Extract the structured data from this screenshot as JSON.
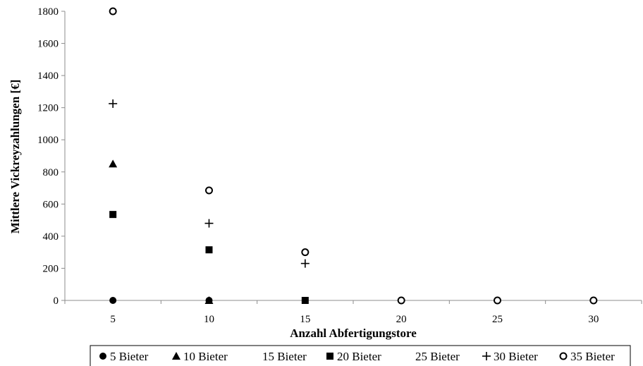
{
  "chart_data": {
    "type": "scatter",
    "xlabel": "Anzahl Abfertigungstore",
    "ylabel": "Mittlere Vickreyzahlungen [€]",
    "x_categories": [
      "5",
      "10",
      "15",
      "20",
      "25",
      "30"
    ],
    "ylim": [
      0,
      1800
    ],
    "yticks": [
      "0",
      "200",
      "400",
      "600",
      "800",
      "1000",
      "1200",
      "1400",
      "1600",
      "1800"
    ],
    "grid": false,
    "legend_position": "bottom",
    "series": [
      {
        "name": "5 Bieter",
        "marker": "circle-filled",
        "values": [
          0,
          0,
          null,
          null,
          null,
          null
        ]
      },
      {
        "name": "10 Bieter",
        "marker": "triangle-filled",
        "values": [
          850,
          0,
          null,
          null,
          null,
          null
        ]
      },
      {
        "name": "15 Bieter",
        "marker": "none",
        "values": [
          null,
          null,
          null,
          null,
          null,
          null
        ]
      },
      {
        "name": "20 Bieter",
        "marker": "square-filled",
        "values": [
          535,
          315,
          0,
          null,
          null,
          null
        ]
      },
      {
        "name": "25 Bieter",
        "marker": "none",
        "values": [
          null,
          null,
          null,
          null,
          null,
          null
        ]
      },
      {
        "name": "30 Bieter",
        "marker": "plus",
        "values": [
          1225,
          480,
          230,
          null,
          null,
          null
        ]
      },
      {
        "name": "35 Bieter",
        "marker": "circle-open",
        "values": [
          1800,
          685,
          300,
          0,
          0,
          0
        ]
      }
    ]
  }
}
